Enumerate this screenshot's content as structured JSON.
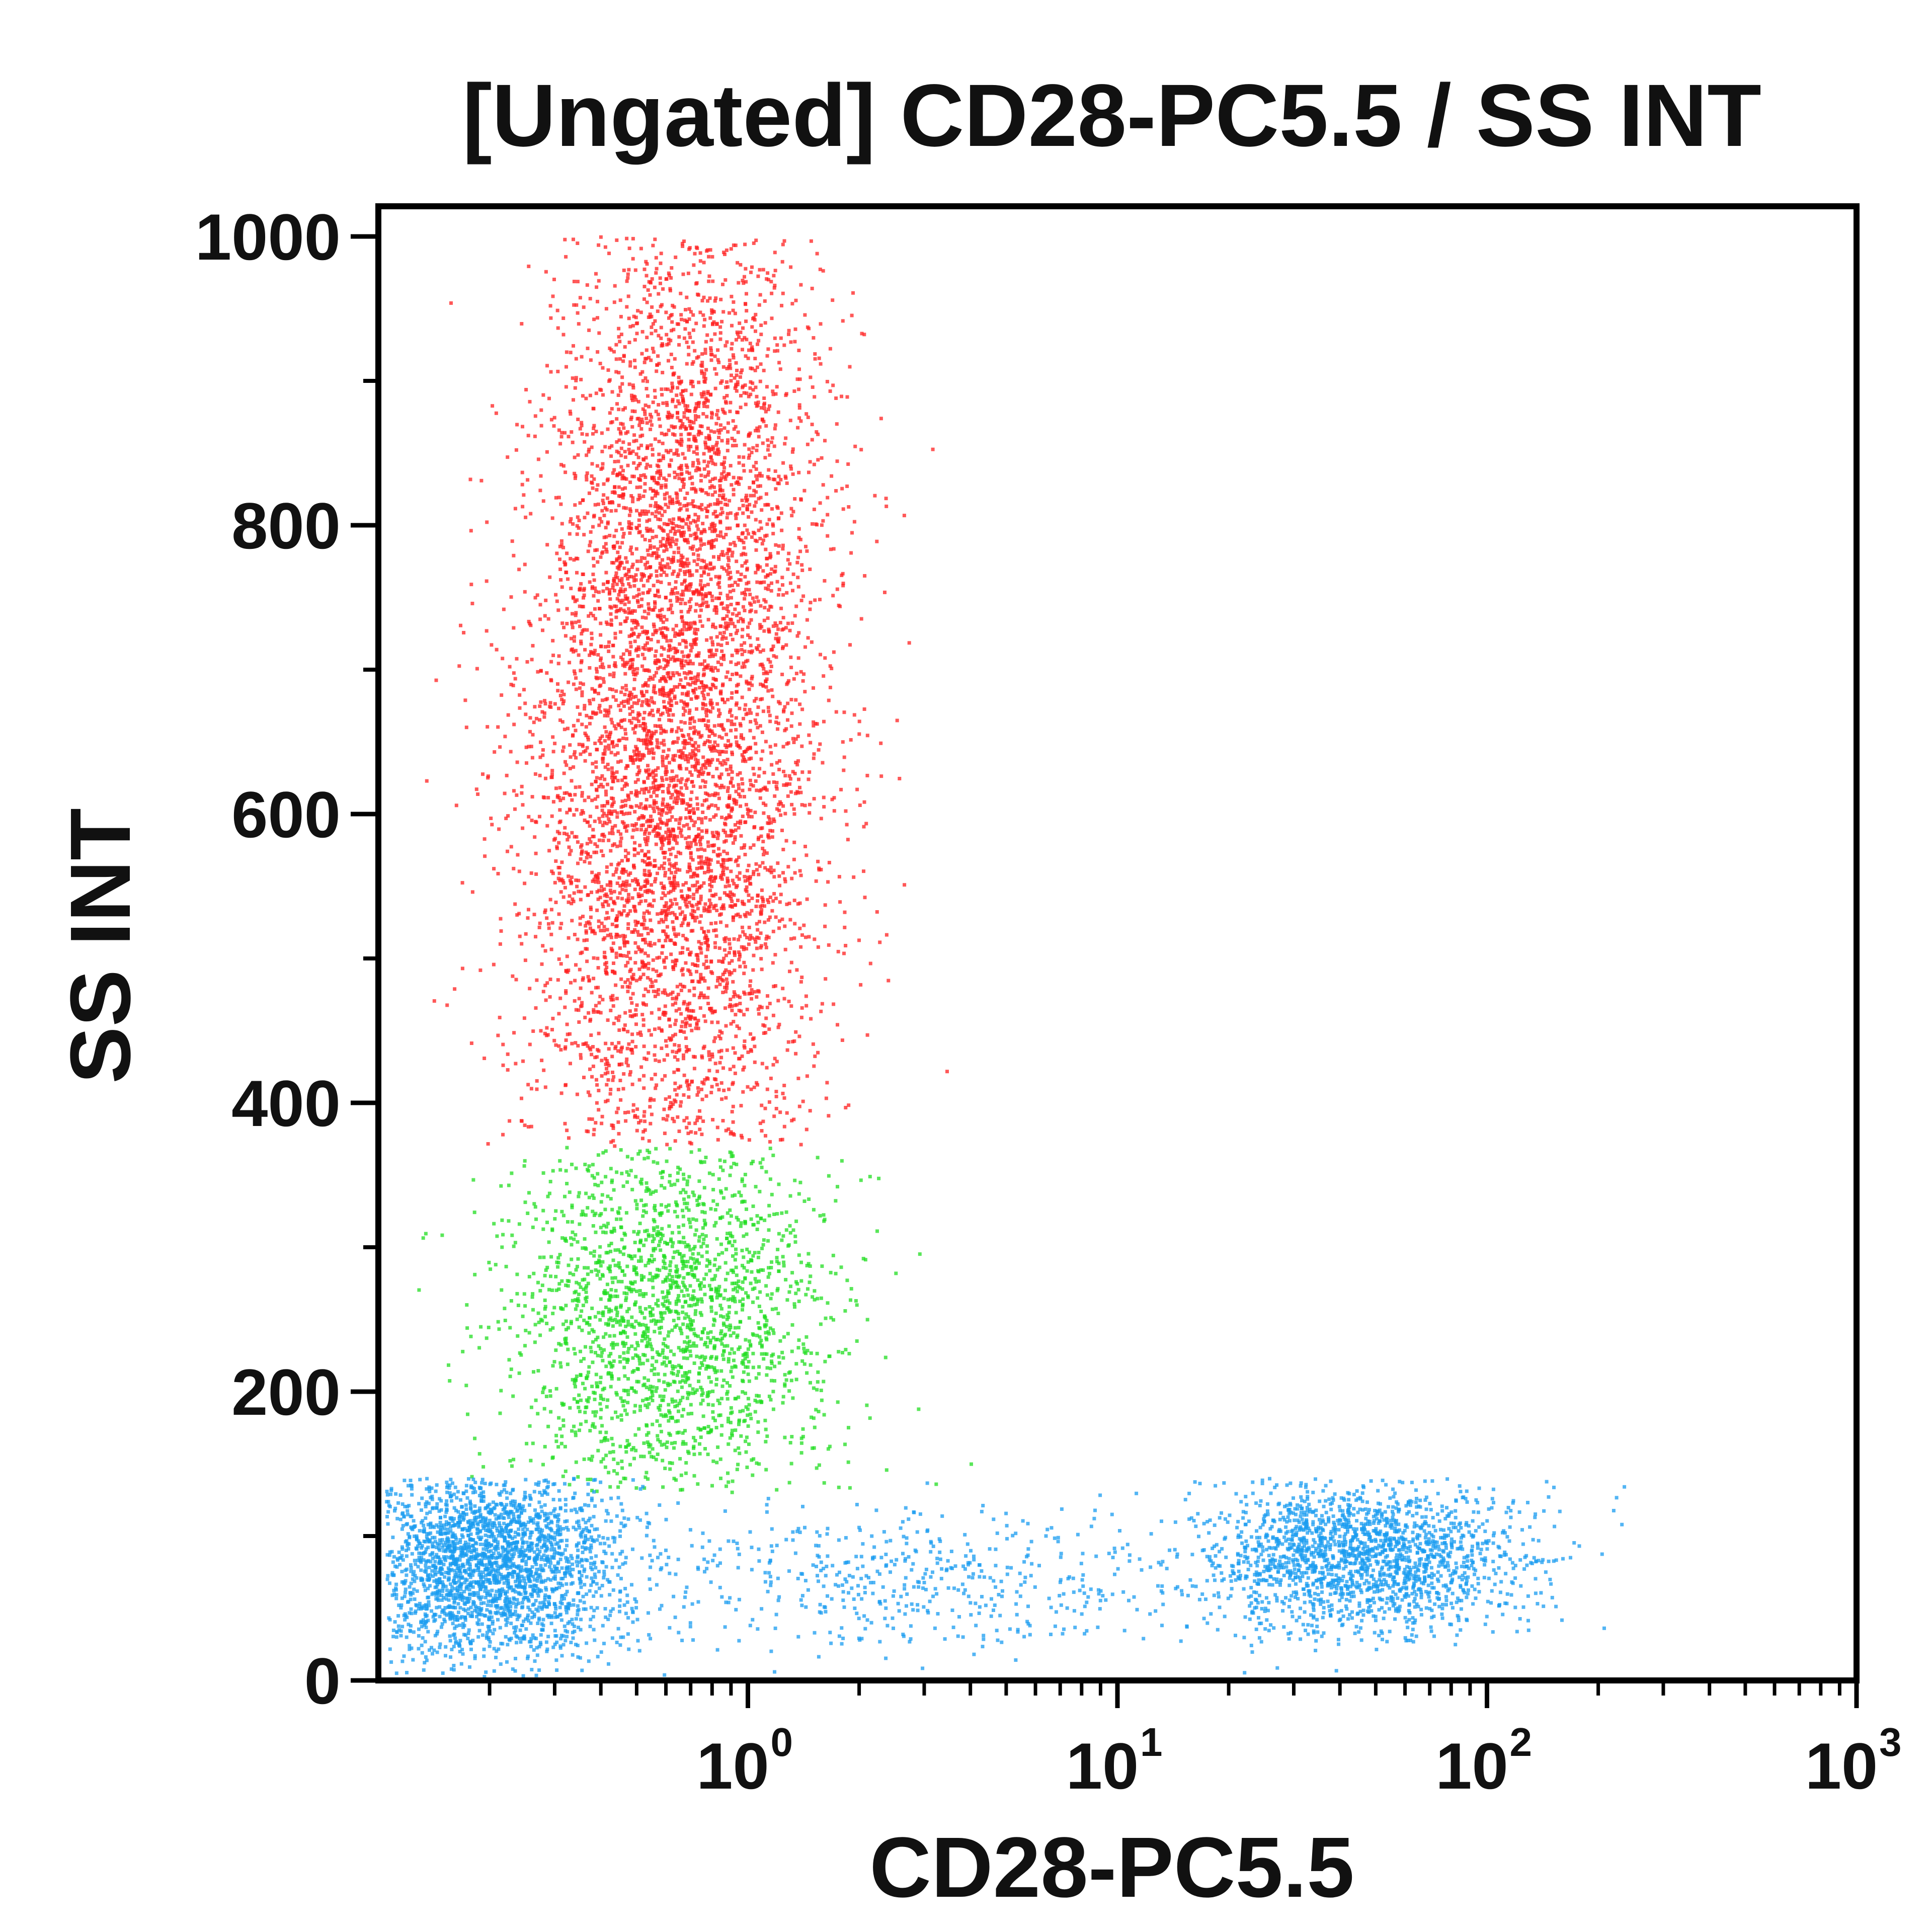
{
  "chart_data": {
    "type": "scatter",
    "title": "[Ungated] CD28-PC5.5 / SS INT",
    "xlabel": "CD28-PC5.5",
    "ylabel": "SS INT",
    "x_scale": "log",
    "xlim": [
      0.1,
      1000
    ],
    "ylim": [
      0,
      1000
    ],
    "x_tick_labels": [
      {
        "value": 1,
        "base": "10",
        "exp": "0"
      },
      {
        "value": 10,
        "base": "10",
        "exp": "1"
      },
      {
        "value": 100,
        "base": "10",
        "exp": "2"
      },
      {
        "value": 1000,
        "base": "10",
        "exp": "3"
      }
    ],
    "y_ticks": [
      0,
      200,
      400,
      600,
      800,
      1000
    ],
    "y_tick_labels": [
      "0",
      "200",
      "400",
      "600",
      "800",
      "1000"
    ],
    "grid": false,
    "series": [
      {
        "color": "#ff2020",
        "clusters": [
          {
            "x_center": 0.62,
            "y_center": 610,
            "x_spread_decades": 0.2,
            "y_spread": 140,
            "count": 4800
          },
          {
            "x_center": 0.7,
            "y_center": 850,
            "x_spread_decades": 0.18,
            "y_spread": 90,
            "count": 1600
          }
        ],
        "y_range": [
          370,
          1000
        ]
      },
      {
        "color": "#22dd22",
        "clusters": [
          {
            "x_center": 0.6,
            "y_center": 250,
            "x_spread_decades": 0.22,
            "y_spread": 65,
            "count": 2200
          }
        ],
        "y_range": [
          130,
          370
        ]
      },
      {
        "color": "#1a9cf0",
        "clusters": [
          {
            "x_center": 0.2,
            "y_center": 80,
            "x_spread_decades": 0.18,
            "y_spread": 35,
            "count": 2600
          },
          {
            "x_center": 45,
            "y_center": 85,
            "x_spread_decades": 0.22,
            "y_spread": 25,
            "count": 1900
          },
          {
            "x_center": 2.5,
            "y_center": 70,
            "x_spread_decades": 0.35,
            "y_spread": 25,
            "count": 500
          }
        ],
        "y_range": [
          0,
          140
        ]
      }
    ]
  }
}
